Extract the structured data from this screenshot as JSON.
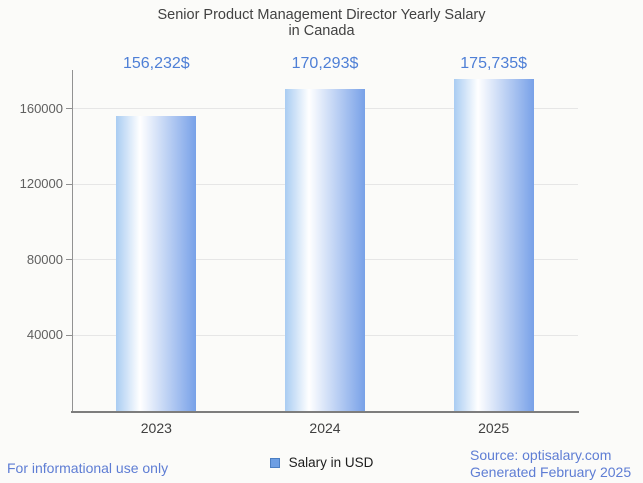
{
  "page": {
    "background": "#fbfbf9"
  },
  "title_lines": [
    "Senior Product Management Director Yearly Salary",
    "in Canada"
  ],
  "chart_data": {
    "type": "bar",
    "title": "Senior Product Management Director Yearly Salary in Canada",
    "categories": [
      "2023",
      "2024",
      "2025"
    ],
    "values": [
      156232,
      170293,
      175735
    ],
    "value_labels": [
      "156,232$",
      "170,293$",
      "175,735$"
    ],
    "series": [
      {
        "name": "Salary in USD",
        "values": [
          156232,
          170293,
          175735
        ]
      }
    ],
    "xlabel": "",
    "ylabel": "",
    "ylim": [
      0,
      180600
    ],
    "yticks": [
      40000,
      80000,
      120000,
      160000
    ],
    "ytick_labels": [
      "40000",
      "80000",
      "120000",
      "160000"
    ],
    "grid": true,
    "legend": {
      "label": "Salary in USD",
      "position": "bottom"
    },
    "colors": {
      "bar_gradient_left": "#a9ccf2",
      "bar_gradient_mid": "#ffffff",
      "bar_gradient_right": "#78a1e8",
      "value_label": "#4e7fd6",
      "gridline": "#e6e6e6",
      "axis_line": "#8f8f8f",
      "tick_label": "#606060",
      "category_label": "#404040",
      "legend_swatch_fill": "#6d9ee3",
      "legend_swatch_border": "#4b7ec2"
    }
  },
  "footer": {
    "left": "For informational use only",
    "source": "Source: optisalary.com",
    "generated": "Generated February 2025",
    "link_color": "#5e7dd4"
  }
}
